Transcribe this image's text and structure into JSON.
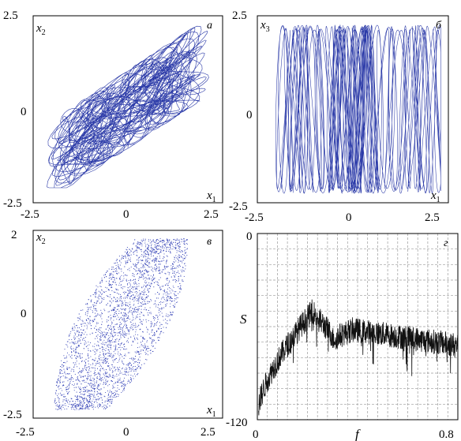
{
  "colors": {
    "trace": "#2b3aa8",
    "dots": "#3846b8",
    "spectrum": "#111111"
  },
  "chart_data": [
    {
      "id": "a",
      "type": "line",
      "panel_label": "а",
      "xlabel": "x",
      "xlabel_sub": "1",
      "ylabel": "x",
      "ylabel_sub": "2",
      "xlim": [
        -2.5,
        2.5
      ],
      "ylim": [
        -2.5,
        2.5
      ],
      "x_ticks": [
        "-2.5",
        "0",
        "2.5"
      ],
      "y_ticks": [
        "2.5",
        "0",
        "-2.5"
      ],
      "grid": false,
      "description_values": {
        "x_range": [
          -2.2,
          2.4
        ],
        "y_range": [
          -2.1,
          2.4
        ]
      }
    },
    {
      "id": "b",
      "type": "line",
      "panel_label": "б",
      "xlabel": "x",
      "xlabel_sub": "1",
      "ylabel": "x",
      "ylabel_sub": "3",
      "xlim": [
        -2.5,
        2.5
      ],
      "ylim": [
        -2.5,
        2.5
      ],
      "x_ticks": [
        "-2.5",
        "0",
        "2.5"
      ],
      "y_ticks": [
        "2.5",
        "0",
        "-2.5"
      ],
      "grid": false,
      "description_values": {
        "x_range": [
          -2.4,
          2.3
        ],
        "y_range": [
          -2.2,
          2.3
        ]
      }
    },
    {
      "id": "c",
      "type": "scatter",
      "panel_label": "в",
      "xlabel": "x",
      "xlabel_sub": "1",
      "ylabel": "x",
      "ylabel_sub": "2",
      "xlim": [
        -2.5,
        2.5
      ],
      "ylim": [
        -2.5,
        2
      ],
      "x_ticks": [
        "-2.5",
        "0",
        "2.5"
      ],
      "y_ticks": [
        "2",
        "0",
        "-2.5"
      ],
      "grid": false,
      "description_values": {
        "x_range": [
          -2.2,
          2.1
        ],
        "y_range": [
          -2.3,
          1.8
        ]
      }
    },
    {
      "id": "d",
      "type": "line",
      "panel_label": "г",
      "xlabel": "f",
      "ylabel": "S",
      "xlim": [
        0,
        0.8
      ],
      "ylim": [
        -120,
        0
      ],
      "x_ticks": [
        "0",
        "0.8"
      ],
      "y_ticks": [
        "0",
        "-120"
      ],
      "grid": true,
      "peak": {
        "f": 0.22,
        "S": -50
      },
      "shoulder": {
        "f": 0.38,
        "S": -62
      }
    }
  ]
}
